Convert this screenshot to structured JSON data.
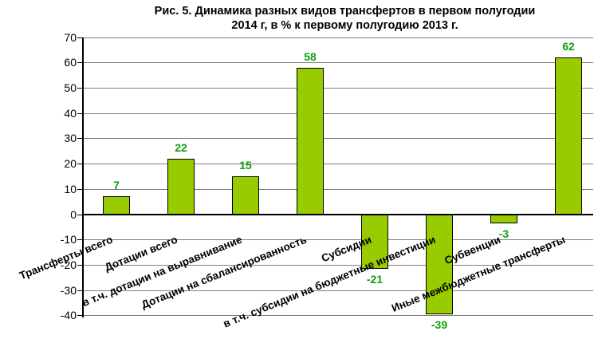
{
  "chart_data": {
    "type": "bar",
    "title_line1": "Рис. 5. Динамика разных видов трансфертов в первом полугодии",
    "title_line2": "2014 г, в % к первому полугодию 2013 г.",
    "categories": [
      "Трансферты всего",
      "Дотации всего",
      "в т.ч. дотации на выравнивание",
      "Дотации на сбалансированность",
      "Субсидии",
      "в т.ч. субсидии на бюджетные инвестиции",
      "Субвенции",
      "Иные межбюджетные трансферты"
    ],
    "values": [
      7,
      22,
      15,
      58,
      -21,
      -39,
      -3,
      62
    ],
    "data_labels": [
      "7",
      "22",
      "15",
      "58",
      "-21",
      "-39",
      "-3",
      "62"
    ],
    "yticks": [
      70,
      60,
      50,
      40,
      30,
      20,
      10,
      0,
      -10,
      -20,
      -30,
      -40
    ],
    "ylim": [
      -40,
      70
    ],
    "ytick_step": 10,
    "grid": true,
    "legend": "none",
    "xlabel": "",
    "ylabel": "",
    "colors": {
      "bar_fill": "#99CC00",
      "bar_border": "#000000",
      "value_label": "#0FA00F",
      "gridline": "#808080",
      "axis": "#000000",
      "text": "#000000",
      "background": "#FFFFFF"
    }
  }
}
